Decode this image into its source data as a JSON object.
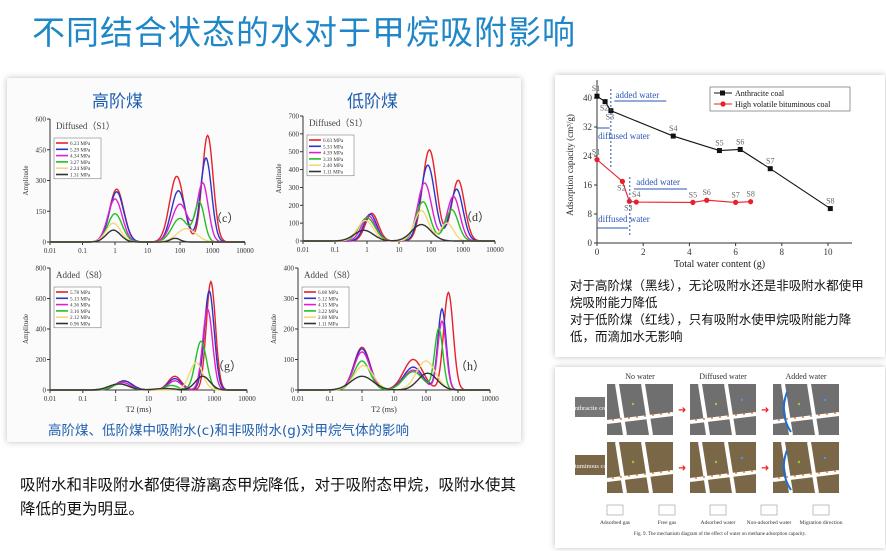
{
  "title": "不同结合状态的水对于甲烷吸附影响",
  "left_panel": {
    "header_high": "高阶煤",
    "header_low": "低阶煤",
    "caption": "高阶煤、低阶煤中吸附水(c)和非吸附水(g)对甲烷气体的影响"
  },
  "bottom_text": "吸附水和非吸附水都使得游离态甲烷降低，对于吸附态甲烷，吸附水使其降低的更为明显。",
  "right_notes": {
    "line1": "对于高阶煤（黑线），无论吸附水还是非吸附水都使甲烷吸附能力降低",
    "line2": "对于低阶煤（红线），只有吸附水使甲烷吸附能力降低，而滴加水无影响"
  },
  "colors": {
    "title": "#1f86c8",
    "red": "#e8202a",
    "blue": "#2a35c8",
    "magenta": "#e020d0",
    "green": "#22c022",
    "yellow": "#f3d97a",
    "black": "#333333"
  },
  "mechanism": {
    "columns": [
      "No water",
      "Diffused water",
      "Added water"
    ],
    "rows": [
      "Anthracite coal",
      "Bituminous coal"
    ],
    "legend": [
      "Adsorbed gas",
      "Free gas",
      "Adsorbed water",
      "Non-adsorbed water",
      "Migration direction"
    ],
    "caption": "Fig. 9. The mechanism diagram of the effect of water on methane adsorption capacity."
  },
  "chart_data": [
    {
      "id": "c",
      "type": "line",
      "title": "Diffused（S1）",
      "panel_label": "（c）",
      "xlabel": "",
      "ylabel": "Amplitude",
      "xscale": "log",
      "xlim": [
        0.01,
        10000
      ],
      "ylim": [
        0,
        600
      ],
      "xticks": [
        "0.01",
        "0.1",
        "1",
        "10",
        "100",
        "1000",
        "10000"
      ],
      "yticks": [
        "0",
        "150",
        "300",
        "450",
        "600"
      ],
      "series_model": "sum of gaussian peaks [log10(T2), amplitude, width(decades)]",
      "series": [
        {
          "name": "6.23 MPa",
          "color": "red",
          "peaks": [
            [
              0.05,
              258,
              0.22
            ],
            [
              1.9,
              320,
              0.22
            ],
            [
              2.85,
              520,
              0.17
            ]
          ]
        },
        {
          "name": "5.29 MPa",
          "color": "blue",
          "peaks": [
            [
              0.05,
              245,
              0.22
            ],
            [
              1.95,
              250,
              0.22
            ],
            [
              2.8,
              410,
              0.17
            ]
          ]
        },
        {
          "name": "4.34 MPa",
          "color": "magenta",
          "peaks": [
            [
              0,
              210,
              0.22
            ],
            [
              2.0,
              185,
              0.25
            ],
            [
              2.7,
              285,
              0.17
            ]
          ]
        },
        {
          "name": "3.27 MPa",
          "color": "green",
          "peaks": [
            [
              0,
              138,
              0.22
            ],
            [
              2.0,
              115,
              0.25
            ],
            [
              2.6,
              190,
              0.15
            ]
          ]
        },
        {
          "name": "2.24 MPa",
          "color": "yellow",
          "peaks": [
            [
              -0.05,
              92,
              0.22
            ],
            [
              2.2,
              65,
              0.3
            ]
          ]
        },
        {
          "name": "1.31 MPa",
          "color": "black",
          "peaks": [
            [
              -0.05,
              58,
              0.22
            ],
            [
              1.85,
              18,
              0.15
            ]
          ]
        }
      ]
    },
    {
      "id": "d",
      "type": "line",
      "title": "Diffused（S1）",
      "panel_label": "（d）",
      "xlabel": "",
      "ylabel": "Amplitude",
      "xscale": "log",
      "xlim": [
        0.01,
        10000
      ],
      "ylim": [
        0,
        700
      ],
      "xticks": [
        "0.01",
        "0.1",
        "1",
        "10",
        "100",
        "1000",
        "10000"
      ],
      "yticks": [
        "0",
        "100",
        "200",
        "300",
        "400",
        "500",
        "600",
        "700"
      ],
      "series_model": "sum of gaussian peaks [log10(T2), amplitude, width(decades)]",
      "series": [
        {
          "name": "6.03 MPa",
          "color": "red",
          "peaks": [
            [
              0.15,
              155,
              0.2
            ],
            [
              1.95,
              510,
              0.22
            ],
            [
              2.85,
              340,
              0.2
            ]
          ]
        },
        {
          "name": "5.33 MPa",
          "color": "blue",
          "peaks": [
            [
              0.1,
              150,
              0.2
            ],
            [
              1.9,
              425,
              0.22
            ],
            [
              2.8,
              290,
              0.2
            ]
          ]
        },
        {
          "name": "4.39 MPa",
          "color": "magenta",
          "peaks": [
            [
              0.05,
              140,
              0.22
            ],
            [
              1.8,
              325,
              0.22
            ],
            [
              2.7,
              250,
              0.2
            ]
          ]
        },
        {
          "name": "3.39 MPa",
          "color": "green",
          "peaks": [
            [
              0,
              130,
              0.25
            ],
            [
              1.75,
              220,
              0.22
            ],
            [
              2.65,
              175,
              0.2
            ]
          ]
        },
        {
          "name": "2.40 MPa",
          "color": "yellow",
          "peaks": [
            [
              -0.05,
              115,
              0.25
            ],
            [
              1.7,
              170,
              0.22
            ],
            [
              2.5,
              100,
              0.2
            ]
          ]
        },
        {
          "name": "1.11 MPa",
          "color": "black",
          "peaks": [
            [
              -0.1,
              60,
              0.3
            ],
            [
              1.7,
              92,
              0.3
            ]
          ]
        }
      ]
    },
    {
      "id": "g",
      "type": "line",
      "title": "Added（S8）",
      "panel_label": "（g）",
      "xlabel": "T2 (ms)",
      "ylabel": "Amplitude",
      "xscale": "log",
      "xlim": [
        0.01,
        10000
      ],
      "ylim": [
        0,
        800
      ],
      "xticks": [
        "0.01",
        "0.1",
        "1",
        "10",
        "100",
        "1000",
        "10000"
      ],
      "yticks": [
        "0",
        "200",
        "400",
        "600",
        "800"
      ],
      "series_model": "sum of gaussian peaks [log10(T2), amplitude, width(decades)]",
      "series": [
        {
          "name": "5.78 MPa",
          "color": "red",
          "peaks": [
            [
              0.25,
              60,
              0.25
            ],
            [
              1.8,
              90,
              0.2
            ],
            [
              2.9,
              710,
              0.14
            ]
          ]
        },
        {
          "name": "5.13 MPa",
          "color": "blue",
          "peaks": [
            [
              0.25,
              60,
              0.25
            ],
            [
              1.8,
              75,
              0.2
            ],
            [
              2.85,
              650,
              0.15
            ]
          ]
        },
        {
          "name": "4.36 MPa",
          "color": "magenta",
          "peaks": [
            [
              0.2,
              50,
              0.25
            ],
            [
              1.8,
              60,
              0.2
            ],
            [
              2.8,
              530,
              0.15
            ]
          ]
        },
        {
          "name": "3.16 MPa",
          "color": "green",
          "peaks": [
            [
              0.15,
              40,
              0.25
            ],
            [
              1.7,
              30,
              0.2
            ],
            [
              2.6,
              320,
              0.17
            ]
          ]
        },
        {
          "name": "2.12 MPa",
          "color": "yellow",
          "peaks": [
            [
              0.1,
              40,
              0.3
            ],
            [
              2.45,
              180,
              0.2
            ]
          ]
        },
        {
          "name": "0.96 MPa",
          "color": "black",
          "peaks": [
            [
              0.1,
              40,
              0.3
            ],
            [
              1.5,
              10,
              0.3
            ],
            [
              2.65,
              90,
              0.22
            ]
          ]
        }
      ]
    },
    {
      "id": "h",
      "type": "line",
      "title": "Added（S8）",
      "panel_label": "（h）",
      "xlabel": "T2 (ms)",
      "ylabel": "Amplitude",
      "xscale": "log",
      "xlim": [
        0.01,
        10000
      ],
      "ylim": [
        0,
        400
      ],
      "xticks": [
        "0.01",
        "0.1",
        "1",
        "10",
        "100",
        "1000",
        "10000"
      ],
      "yticks": [
        "0",
        "100",
        "200",
        "300",
        "400"
      ],
      "series_model": "sum of gaussian peaks [log10(T2), amplitude, width(decades)]",
      "series": [
        {
          "name": "6.08 MPa",
          "color": "red",
          "peaks": [
            [
              0,
              140,
              0.25
            ],
            [
              1.6,
              100,
              0.3
            ],
            [
              2.7,
              320,
              0.15
            ]
          ]
        },
        {
          "name": "5.12 MPa",
          "color": "blue",
          "peaks": [
            [
              0,
              135,
              0.25
            ],
            [
              1.6,
              75,
              0.3
            ],
            [
              2.5,
              265,
              0.13
            ]
          ]
        },
        {
          "name": "4.15 MPa",
          "color": "magenta",
          "peaks": [
            [
              0,
              125,
              0.25
            ],
            [
              1.6,
              65,
              0.3
            ],
            [
              2.5,
              225,
              0.13
            ]
          ]
        },
        {
          "name": "3.22 MPa",
          "color": "green",
          "peaks": [
            [
              0,
              95,
              0.25
            ],
            [
              1.6,
              60,
              0.3
            ],
            [
              2.4,
              200,
              0.13
            ]
          ]
        },
        {
          "name": "2.08 MPa",
          "color": "yellow",
          "peaks": [
            [
              0.05,
              80,
              0.3
            ],
            [
              2.0,
              95,
              0.3
            ]
          ]
        },
        {
          "name": "1.11 MPa",
          "color": "black",
          "peaks": [
            [
              0,
              45,
              0.35
            ],
            [
              2.05,
              55,
              0.3
            ]
          ]
        }
      ]
    },
    {
      "id": "adsorption",
      "type": "line",
      "xlabel": "Total water content (g)",
      "ylabel": "Adsorption capacity (cm³/g)",
      "xlim": [
        0,
        11
      ],
      "ylim": [
        0,
        44
      ],
      "xticks": [
        "0",
        "2",
        "4",
        "6",
        "8",
        "10"
      ],
      "yticks": [
        "0",
        "8",
        "16",
        "24",
        "32",
        "40"
      ],
      "annotations": {
        "added": "added water",
        "diffused": "diffused water"
      },
      "series": [
        {
          "name": "Anthracite coal",
          "color": "#111111",
          "marker": "square",
          "x": [
            0,
            0.35,
            0.6,
            3.3,
            5.3,
            6.2,
            7.5,
            10.1
          ],
          "y": [
            40.5,
            39,
            36.5,
            29.5,
            25.5,
            25.8,
            20.5,
            9.5
          ],
          "labels": [
            "S1",
            "S2",
            "S3",
            "S4",
            "S5",
            "S6",
            "S7",
            "S8"
          ]
        },
        {
          "name": "High volatile bituminous coal",
          "color": "#e8202a",
          "marker": "circle",
          "x": [
            0,
            1.1,
            1.4,
            1.7,
            4.15,
            4.75,
            6.0,
            6.65
          ],
          "y": [
            23,
            17,
            11.5,
            11.3,
            11.2,
            11.8,
            11.2,
            11.4
          ],
          "labels": [
            "S1",
            "S2",
            "S3",
            "S4",
            "S5",
            "S6",
            "S7",
            "S8"
          ]
        }
      ]
    }
  ]
}
